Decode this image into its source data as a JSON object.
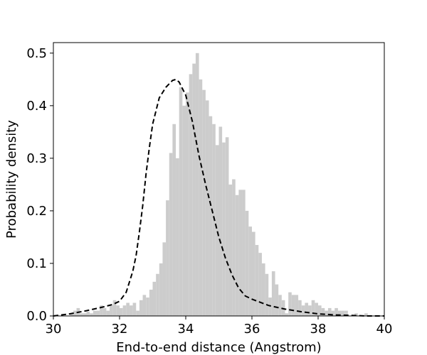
{
  "chart_data": {
    "type": "histogram",
    "title": "",
    "xlabel": "End-to-end distance (Angstrom)",
    "ylabel": "Probability density",
    "xlim": [
      30,
      40
    ],
    "ylim": [
      0,
      0.52
    ],
    "xticks": [
      30,
      32,
      34,
      36,
      38,
      40
    ],
    "yticks": [
      0.0,
      0.1,
      0.2,
      0.3,
      0.4,
      0.5
    ],
    "xtick_labels": [
      "30",
      "32",
      "34",
      "36",
      "38",
      "40"
    ],
    "ytick_labels": [
      "0.0",
      "0.1",
      "0.2",
      "0.3",
      "0.4",
      "0.5"
    ],
    "grid": false,
    "bar_color": "#cccccc",
    "curve_color": "#000000",
    "curve_style": "dashed",
    "histogram": {
      "bin_width": 0.1,
      "bin_start": 30.0,
      "density": [
        0.0,
        0.0,
        0.0,
        0.0,
        0.0,
        0.005,
        0.01,
        0.015,
        0.005,
        0.005,
        0.008,
        0.005,
        0.01,
        0.01,
        0.02,
        0.015,
        0.01,
        0.02,
        0.03,
        0.02,
        0.015,
        0.02,
        0.025,
        0.02,
        0.025,
        0.01,
        0.03,
        0.04,
        0.035,
        0.05,
        0.065,
        0.08,
        0.1,
        0.14,
        0.22,
        0.31,
        0.365,
        0.3,
        0.435,
        0.4,
        0.425,
        0.46,
        0.48,
        0.5,
        0.45,
        0.43,
        0.41,
        0.38,
        0.365,
        0.325,
        0.36,
        0.33,
        0.34,
        0.25,
        0.26,
        0.23,
        0.24,
        0.24,
        0.2,
        0.17,
        0.16,
        0.135,
        0.12,
        0.1,
        0.08,
        0.035,
        0.085,
        0.06,
        0.04,
        0.03,
        0.005,
        0.045,
        0.04,
        0.04,
        0.03,
        0.02,
        0.025,
        0.02,
        0.03,
        0.025,
        0.02,
        0.015,
        0.01,
        0.015,
        0.01,
        0.015,
        0.01,
        0.01,
        0.01,
        0.0,
        0.0,
        0.005,
        0.0,
        0.0,
        0.005,
        0.0,
        0.0,
        0.0,
        0.0,
        0.0
      ]
    },
    "kde_curve": {
      "x": [
        30.0,
        30.5,
        31.0,
        31.5,
        31.8,
        32.0,
        32.2,
        32.4,
        32.5,
        32.6,
        32.7,
        32.8,
        32.9,
        33.0,
        33.2,
        33.4,
        33.6,
        33.7,
        33.8,
        34.0,
        34.2,
        34.4,
        34.6,
        34.8,
        35.0,
        35.2,
        35.4,
        35.6,
        35.8,
        36.0,
        36.5,
        37.0,
        37.5,
        38.0,
        38.5,
        39.0,
        39.5,
        40.0
      ],
      "y": [
        0.0,
        0.004,
        0.01,
        0.017,
        0.022,
        0.028,
        0.045,
        0.085,
        0.115,
        0.16,
        0.21,
        0.27,
        0.32,
        0.365,
        0.415,
        0.435,
        0.448,
        0.45,
        0.445,
        0.42,
        0.37,
        0.305,
        0.25,
        0.2,
        0.15,
        0.11,
        0.078,
        0.053,
        0.038,
        0.032,
        0.02,
        0.013,
        0.008,
        0.004,
        0.002,
        0.001,
        0.0,
        0.0
      ]
    }
  }
}
